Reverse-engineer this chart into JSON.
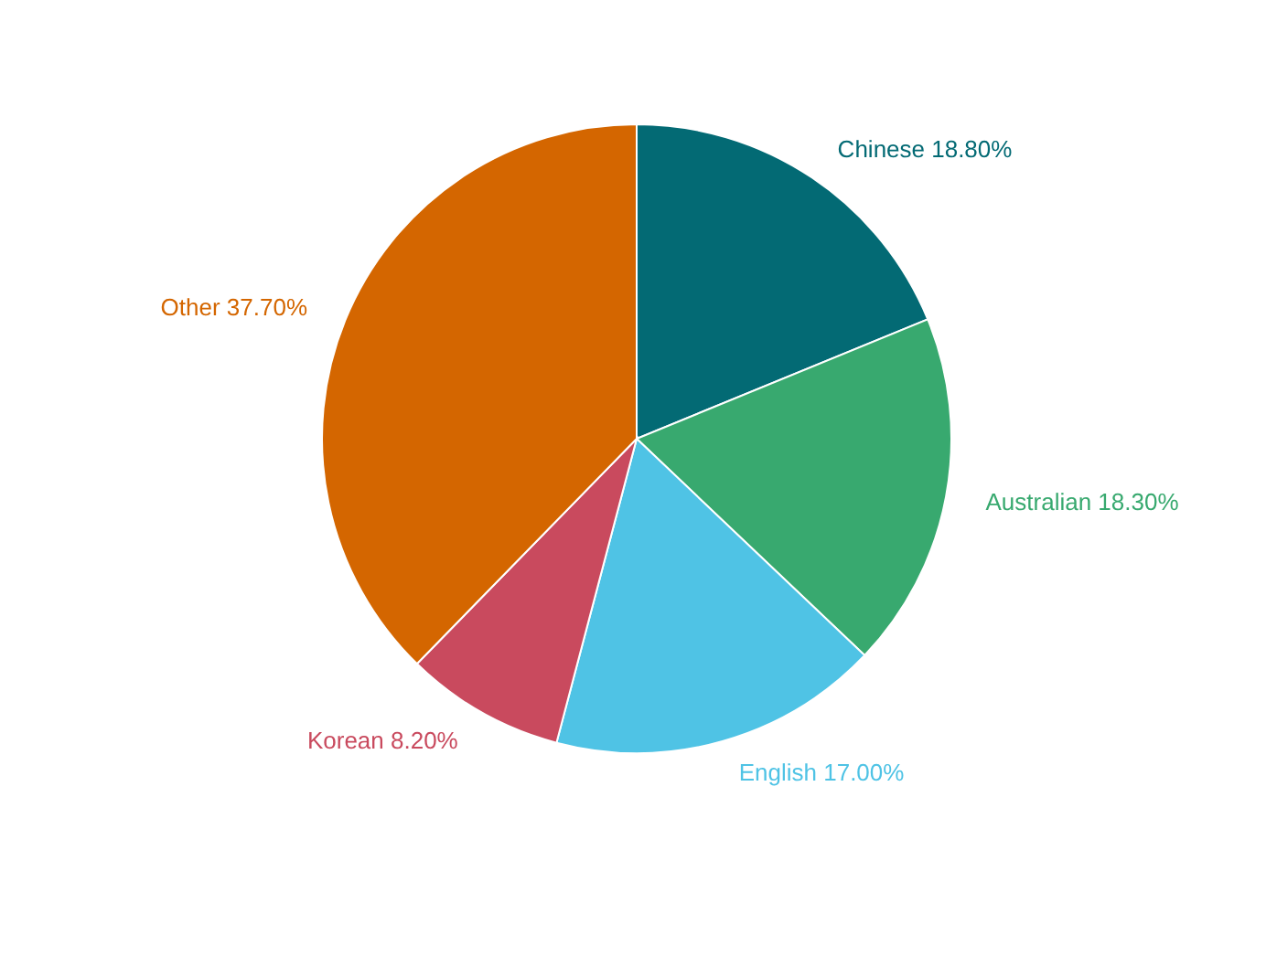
{
  "chart_data": {
    "type": "pie",
    "categories": [
      "Chinese",
      "Australian",
      "English",
      "Korean",
      "Other"
    ],
    "values": [
      18.8,
      18.3,
      17.0,
      8.2,
      37.7
    ],
    "value_labels": [
      "18.80%",
      "18.30%",
      "17.00%",
      "8.20%",
      "37.70%"
    ],
    "colors": [
      "#036a74",
      "#38a96f",
      "#4fc3e5",
      "#c94a5e",
      "#d46600"
    ]
  }
}
